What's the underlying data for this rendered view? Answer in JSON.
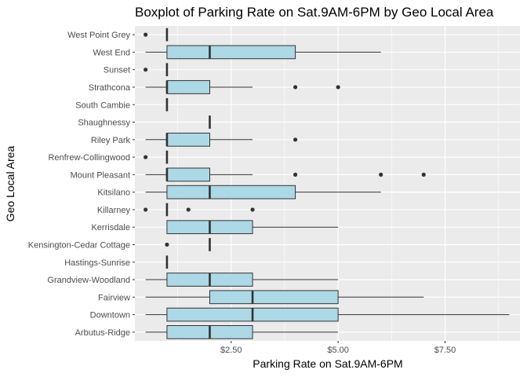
{
  "chart_data": {
    "type": "boxplot",
    "orientation": "horizontal",
    "title": "Boxplot of Parking Rate on Sat.9AM-6PM by Geo Local Area",
    "xlabel": "Parking Rate on Sat.9AM-6PM",
    "ylabel": "Geo Local Area",
    "xlim": [
      0.25,
      9.25
    ],
    "x_ticks": [
      {
        "value": 2.5,
        "label": "$2.50"
      },
      {
        "value": 5.0,
        "label": "$5.00"
      },
      {
        "value": 7.5,
        "label": "$7.50"
      }
    ],
    "x_minor_ticks": [
      1.25,
      3.75,
      6.25,
      8.75
    ],
    "grid": true,
    "box_fill": "#add8e6",
    "colors": {
      "panel": "#ebebeb",
      "grid": "#ffffff",
      "line": "#333333",
      "outlier": "#333333"
    },
    "categories_top_to_bottom": [
      {
        "name": "West Point Grey",
        "whisker_low": 1.0,
        "q1": 1.0,
        "median": 1.0,
        "q3": 1.0,
        "whisker_high": 1.0,
        "outliers": [
          0.5
        ]
      },
      {
        "name": "West End",
        "whisker_low": 0.5,
        "q1": 1.0,
        "median": 2.0,
        "q3": 4.0,
        "whisker_high": 6.0,
        "outliers": []
      },
      {
        "name": "Sunset",
        "whisker_low": 1.0,
        "q1": 1.0,
        "median": 1.0,
        "q3": 1.0,
        "whisker_high": 1.0,
        "outliers": [
          0.5
        ]
      },
      {
        "name": "Strathcona",
        "whisker_low": 0.5,
        "q1": 1.0,
        "median": 1.0,
        "q3": 2.0,
        "whisker_high": 3.0,
        "outliers": [
          4.0,
          5.0
        ]
      },
      {
        "name": "South Cambie",
        "whisker_low": 1.0,
        "q1": 1.0,
        "median": 1.0,
        "q3": 1.0,
        "whisker_high": 1.0,
        "outliers": []
      },
      {
        "name": "Shaughnessy",
        "whisker_low": 2.0,
        "q1": 2.0,
        "median": 2.0,
        "q3": 2.0,
        "whisker_high": 2.0,
        "outliers": []
      },
      {
        "name": "Riley Park",
        "whisker_low": 0.5,
        "q1": 1.0,
        "median": 1.0,
        "q3": 2.0,
        "whisker_high": 3.0,
        "outliers": [
          4.0
        ]
      },
      {
        "name": "Renfrew-Collingwood",
        "whisker_low": 1.0,
        "q1": 1.0,
        "median": 1.0,
        "q3": 1.0,
        "whisker_high": 1.0,
        "outliers": [
          0.5
        ]
      },
      {
        "name": "Mount Pleasant",
        "whisker_low": 0.5,
        "q1": 1.0,
        "median": 1.0,
        "q3": 2.0,
        "whisker_high": 3.0,
        "outliers": [
          4.0,
          6.0,
          7.0
        ]
      },
      {
        "name": "Kitsilano",
        "whisker_low": 0.5,
        "q1": 1.0,
        "median": 2.0,
        "q3": 4.0,
        "whisker_high": 6.0,
        "outliers": []
      },
      {
        "name": "Killarney",
        "whisker_low": 1.0,
        "q1": 1.0,
        "median": 1.0,
        "q3": 1.0,
        "whisker_high": 1.0,
        "outliers": [
          0.5,
          1.5,
          3.0
        ]
      },
      {
        "name": "Kerrisdale",
        "whisker_low": 1.0,
        "q1": 1.0,
        "median": 2.0,
        "q3": 3.0,
        "whisker_high": 5.0,
        "outliers": []
      },
      {
        "name": "Kensington-Cedar Cottage",
        "whisker_low": 2.0,
        "q1": 2.0,
        "median": 2.0,
        "q3": 2.0,
        "whisker_high": 2.0,
        "outliers": [
          1.0
        ]
      },
      {
        "name": "Hastings-Sunrise",
        "whisker_low": 1.0,
        "q1": 1.0,
        "median": 1.0,
        "q3": 1.0,
        "whisker_high": 1.0,
        "outliers": []
      },
      {
        "name": "Grandview-Woodland",
        "whisker_low": 0.5,
        "q1": 1.0,
        "median": 2.0,
        "q3": 3.0,
        "whisker_high": 5.0,
        "outliers": []
      },
      {
        "name": "Fairview",
        "whisker_low": 0.5,
        "q1": 2.0,
        "median": 3.0,
        "q3": 5.0,
        "whisker_high": 7.0,
        "outliers": []
      },
      {
        "name": "Downtown",
        "whisker_low": 0.5,
        "q1": 1.0,
        "median": 3.0,
        "q3": 5.0,
        "whisker_high": 9.0,
        "outliers": []
      },
      {
        "name": "Arbutus-Ridge",
        "whisker_low": 0.5,
        "q1": 1.0,
        "median": 2.0,
        "q3": 3.0,
        "whisker_high": 5.0,
        "outliers": []
      }
    ]
  }
}
